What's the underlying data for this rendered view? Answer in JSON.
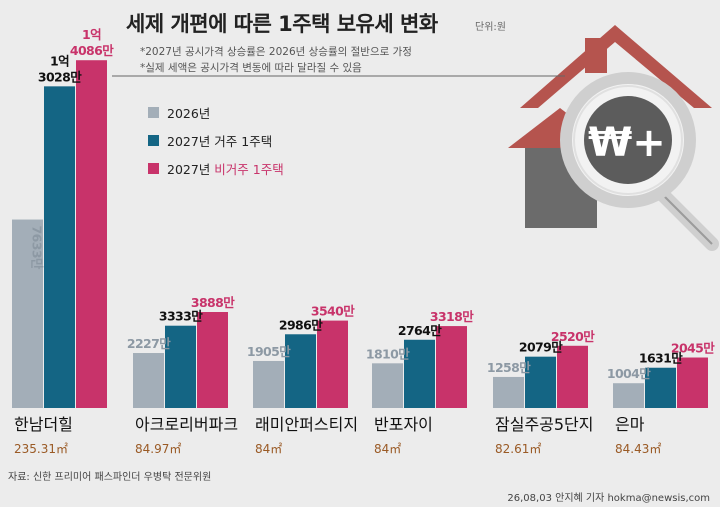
{
  "title": "세제 개편에 따른 1주택 보유세 변화",
  "unit": "단위:원",
  "notes": [
    "*2027년 공시가격 상승률은 2026년 상승률의 절반으로 가정",
    "*실제 세액은 공시가격 변동에 따라 달라질 수 있음"
  ],
  "legend": [
    {
      "label": "2026년",
      "color": "#a3aeb8"
    },
    {
      "label": "2027년 거주 1주택",
      "color": "#146584"
    },
    {
      "label_prefix": "2027년 ",
      "label_highlight": "비거주 1주택",
      "highlight_color": "#c8336a",
      "color": "#c8336a"
    }
  ],
  "illustration": {
    "name": "house-magnifier-won-icon",
    "symbol": "₩+"
  },
  "chart_data": {
    "type": "bar",
    "categories": [
      "한남더힐",
      "아크로리버파크",
      "래미안퍼스티지",
      "반포자이",
      "잠실주공5단지",
      "은마"
    ],
    "areas": [
      "235.31㎡",
      "84.97㎡",
      "84㎡",
      "84㎡",
      "82.61㎡",
      "84.43㎡"
    ],
    "series": [
      {
        "name": "2026년",
        "color": "#a3aeb8",
        "label_color": "#8d99a4",
        "values": [
          7633,
          2227,
          1905,
          1810,
          1258,
          1004
        ],
        "labels": [
          "7633만",
          "2227만",
          "1905만",
          "1810만",
          "1258만",
          "1004만"
        ]
      },
      {
        "name": "2027년 거주 1주택",
        "color": "#146584",
        "label_color": "#111111",
        "values": [
          13028,
          3333,
          2986,
          2764,
          2079,
          1631
        ],
        "labels": [
          "1억\n3028만",
          "3333만",
          "2986만",
          "2764만",
          "2079만",
          "1631만"
        ]
      },
      {
        "name": "2027년 비거주 1주택",
        "color": "#c8336a",
        "label_color": "#c8336a",
        "values": [
          14086,
          3888,
          3540,
          3318,
          2520,
          2045
        ],
        "labels": [
          "1억\n4086만",
          "3888만",
          "3540만",
          "3318만",
          "2520만",
          "2045만"
        ]
      }
    ],
    "ylim": [
      0,
      14500
    ]
  },
  "source": "자료: 신한 프리미어 패스파인더 우병탁 전문위원",
  "credit": "26,08,03 안지혜 기자 hokma@newsis,com"
}
